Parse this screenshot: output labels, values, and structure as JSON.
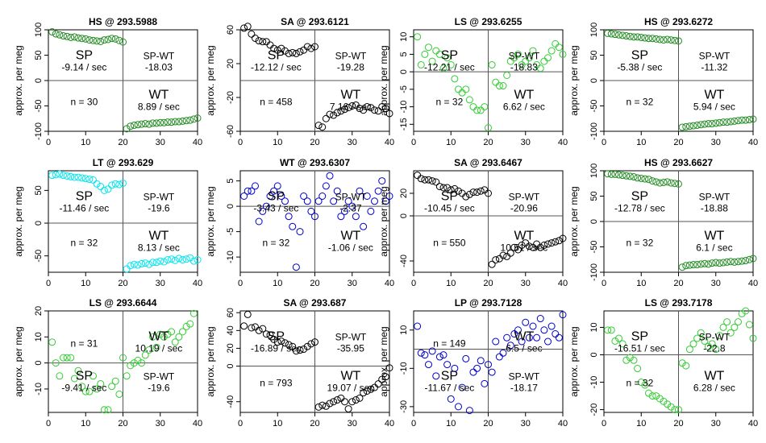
{
  "figure": {
    "ylabel": "approx. per meg",
    "xlim": [
      0,
      40
    ],
    "x_ticks": [
      0,
      10,
      20,
      30,
      40
    ]
  },
  "chart_data": [
    {
      "type": "scatter",
      "title": "HS @ 293.5988",
      "color": "#228B22",
      "ylim": [
        -100,
        100
      ],
      "y_ticks": [
        -100,
        -50,
        0,
        50,
        100
      ],
      "sp_label": "SP",
      "sp_rate": "-9.14 / sec",
      "spwt_label": "SP-WT",
      "spwt_value": "-18.03",
      "wt_label": "WT",
      "wt_rate": "8.89 / sec",
      "n_text": "n = 30",
      "quad": {
        "sp": "tl",
        "spwt": "tr",
        "n": "bl",
        "wt": "br"
      },
      "x": [
        1,
        2,
        3,
        4,
        5,
        6,
        7,
        8,
        9,
        10,
        11,
        12,
        13,
        14,
        15,
        16,
        17,
        18,
        19,
        20,
        21,
        22,
        23,
        24,
        25,
        26,
        27,
        28,
        29,
        30,
        31,
        32,
        33,
        34,
        35,
        36,
        37,
        38,
        39,
        40
      ],
      "y": [
        96,
        92,
        90,
        88,
        87,
        85,
        86,
        84,
        83,
        82,
        80,
        79,
        78,
        77,
        80,
        81,
        83,
        82,
        79,
        76,
        -95,
        -90,
        -88,
        -87,
        -86,
        -85,
        -86,
        -84,
        -84,
        -83,
        -83,
        -82,
        -82,
        -81,
        -81,
        -80,
        -79,
        -78,
        -76,
        -74
      ]
    },
    {
      "type": "scatter",
      "title": "SA @ 293.6121",
      "color": "#000000",
      "ylim": [
        -60,
        60
      ],
      "y_ticks": [
        -60,
        -20,
        20,
        60
      ],
      "sp_label": "SP",
      "sp_rate": "-12.12 / sec",
      "spwt_label": "SP-WT",
      "spwt_value": "-19.28",
      "wt_label": "WT",
      "wt_rate": "7.16 / sec",
      "n_text": "n = 458",
      "quad": {
        "sp": "tl",
        "spwt": "tr",
        "n": "bl",
        "wt": "br"
      },
      "x": [
        1,
        2,
        3,
        4,
        5,
        6,
        7,
        8,
        9,
        10,
        11,
        12,
        13,
        14,
        15,
        16,
        17,
        18,
        19,
        20,
        21,
        22,
        23,
        24,
        25,
        26,
        27,
        28,
        29,
        30,
        31,
        32,
        33,
        34,
        35,
        36,
        37,
        38,
        39,
        40
      ],
      "y": [
        62,
        64,
        55,
        50,
        47,
        46,
        46,
        42,
        38,
        36,
        38,
        35,
        32,
        33,
        32,
        34,
        36,
        40,
        38,
        40,
        -53,
        -55,
        -45,
        -40,
        -41,
        -38,
        -36,
        -34,
        -32,
        -30,
        -29,
        -33,
        -35,
        -31,
        -32,
        -35,
        -36,
        -31,
        -33,
        -39
      ]
    },
    {
      "type": "scatter",
      "title": "LS @ 293.6255",
      "color": "#33CC33",
      "ylim": [
        -17,
        12
      ],
      "y_ticks": [
        -15,
        -10,
        -5,
        0,
        5,
        10
      ],
      "sp_label": "SP",
      "sp_rate": "-12.21 / sec",
      "spwt_label": "SP-WT",
      "spwt_value": "-18.83",
      "wt_label": "WT",
      "wt_rate": "6.62 / sec",
      "n_text": "n = 32",
      "quad": {
        "sp": "tl",
        "spwt": "tr",
        "n": "bl",
        "wt": "br"
      },
      "x": [
        1,
        2,
        3,
        4,
        5,
        6,
        7,
        8,
        9,
        10,
        11,
        12,
        13,
        14,
        15,
        16,
        17,
        18,
        19,
        20,
        21,
        22,
        23,
        24,
        25,
        26,
        27,
        28,
        29,
        30,
        31,
        32,
        33,
        34,
        35,
        36,
        37,
        38,
        39,
        40
      ],
      "y": [
        10,
        2,
        5,
        7,
        3,
        6,
        5,
        1,
        4,
        2,
        -2,
        -5,
        -6,
        -5,
        -8,
        -10,
        -11,
        -11,
        -10,
        -16,
        2,
        -3,
        -4,
        -4,
        -1,
        3,
        4,
        5,
        2,
        3,
        4,
        6,
        2,
        1,
        3,
        4,
        6,
        8,
        7,
        5
      ]
    },
    {
      "type": "scatter",
      "title": "HS @ 293.6272",
      "color": "#228B22",
      "ylim": [
        -100,
        100
      ],
      "y_ticks": [
        -100,
        -50,
        0,
        50,
        100
      ],
      "sp_label": "SP",
      "sp_rate": "-5.38 / sec",
      "spwt_label": "SP-WT",
      "spwt_value": "-11.32",
      "wt_label": "WT",
      "wt_rate": "5.94 / sec",
      "n_text": "n = 32",
      "quad": {
        "sp": "tl",
        "spwt": "tr",
        "n": "bl",
        "wt": "br"
      },
      "x": [
        1,
        2,
        3,
        4,
        5,
        6,
        7,
        8,
        9,
        10,
        11,
        12,
        13,
        14,
        15,
        16,
        17,
        18,
        19,
        20,
        21,
        22,
        23,
        24,
        25,
        26,
        27,
        28,
        29,
        30,
        31,
        32,
        33,
        34,
        35,
        36,
        37,
        38,
        39,
        40
      ],
      "y": [
        93,
        92,
        91,
        90,
        89,
        88,
        87,
        86,
        86,
        85,
        84,
        83,
        83,
        82,
        81,
        80,
        81,
        80,
        79,
        78,
        -92,
        -91,
        -90,
        -89,
        -88,
        -87,
        -86,
        -85,
        -85,
        -84,
        -83,
        -82,
        -82,
        -81,
        -80,
        -79,
        -78,
        -78,
        -77,
        -76
      ]
    },
    {
      "type": "scatter",
      "title": "LT @ 293.629",
      "color": "#00E5EE",
      "ylim": [
        -75,
        80
      ],
      "y_ticks": [
        -50,
        0,
        50
      ],
      "sp_label": "SP",
      "sp_rate": "-11.46 / sec",
      "spwt_label": "SP-WT",
      "spwt_value": "-19.6",
      "wt_label": "WT",
      "wt_rate": "8.13 / sec",
      "n_text": "n = 32",
      "quad": {
        "sp": "tl",
        "spwt": "tr",
        "n": "bl",
        "wt": "br"
      },
      "x": [
        1,
        2,
        3,
        4,
        5,
        6,
        7,
        8,
        9,
        10,
        11,
        12,
        13,
        14,
        15,
        16,
        17,
        18,
        19,
        20,
        21,
        22,
        23,
        24,
        25,
        26,
        27,
        28,
        29,
        30,
        31,
        32,
        33,
        34,
        35,
        36,
        37,
        38,
        39,
        40
      ],
      "y": [
        73,
        74,
        75,
        73,
        72,
        71,
        70,
        70,
        69,
        68,
        67,
        66,
        60,
        56,
        50,
        52,
        58,
        60,
        59,
        61,
        -70,
        -65,
        -63,
        -64,
        -62,
        -61,
        -63,
        -60,
        -60,
        -58,
        -59,
        -56,
        -55,
        -57,
        -54,
        -56,
        -55,
        -53,
        -58,
        -56
      ]
    },
    {
      "type": "scatter",
      "title": "WT @ 293.6307",
      "color": "#0000CD",
      "ylim": [
        -13,
        7
      ],
      "y_ticks": [
        -10,
        -5,
        0,
        5
      ],
      "sp_label": "SP",
      "sp_rate": "-3.43 / sec",
      "spwt_label": "SP-WT",
      "spwt_value": "-2.37",
      "wt_label": "WT",
      "wt_rate": "-1.06 / sec",
      "n_text": "n = 32",
      "quad": {
        "sp": "tl",
        "spwt": "tr",
        "n": "bl",
        "wt": "br"
      },
      "x": [
        1,
        2,
        3,
        4,
        5,
        6,
        7,
        8,
        9,
        10,
        11,
        12,
        13,
        14,
        15,
        16,
        17,
        18,
        19,
        20,
        21,
        22,
        23,
        24,
        25,
        26,
        27,
        28,
        29,
        30,
        31,
        32,
        33,
        34,
        35,
        36,
        37,
        38,
        39,
        40
      ],
      "y": [
        2,
        3,
        3,
        4,
        -3,
        -1,
        0,
        2,
        3,
        4,
        2,
        1,
        -2,
        -4,
        -12,
        -5,
        2,
        1,
        -1,
        -2,
        1,
        2,
        4,
        6,
        1,
        3,
        -2,
        -1,
        1,
        0,
        -2,
        3,
        -4,
        2,
        -1,
        1,
        3,
        5,
        1,
        2
      ]
    },
    {
      "type": "scatter",
      "title": "SA @ 293.6467",
      "color": "#000000",
      "ylim": [
        -50,
        40
      ],
      "y_ticks": [
        -40,
        0,
        20
      ],
      "sp_label": "SP",
      "sp_rate": "-10.45 / sec",
      "spwt_label": "SP-WT",
      "spwt_value": "-20.96",
      "wt_label": "WT",
      "wt_rate": "10.51 / sec",
      "n_text": "n = 550",
      "quad": {
        "sp": "tl",
        "spwt": "tr",
        "n": "bl",
        "wt": "br"
      },
      "x": [
        1,
        2,
        3,
        4,
        5,
        6,
        7,
        8,
        9,
        10,
        11,
        12,
        13,
        14,
        15,
        16,
        17,
        18,
        19,
        20,
        21,
        22,
        23,
        24,
        25,
        26,
        27,
        28,
        29,
        30,
        31,
        32,
        33,
        34,
        35,
        36,
        37,
        38,
        39,
        40
      ],
      "y": [
        36,
        33,
        32,
        32,
        31,
        30,
        26,
        25,
        25,
        23,
        24,
        22,
        20,
        17,
        19,
        21,
        21,
        22,
        23,
        20,
        -43,
        -39,
        -38,
        -35,
        -36,
        -33,
        -28,
        -30,
        -26,
        -24,
        -27,
        -28,
        -25,
        -28,
        -26,
        -25,
        -24,
        -23,
        -22,
        -20
      ]
    },
    {
      "type": "scatter",
      "title": "HS @ 293.6627",
      "color": "#228B22",
      "ylim": [
        -100,
        100
      ],
      "y_ticks": [
        -100,
        -50,
        0,
        50,
        100
      ],
      "sp_label": "SP",
      "sp_rate": "-12.78 / sec",
      "spwt_label": "SP-WT",
      "spwt_value": "-18.88",
      "wt_label": "WT",
      "wt_rate": "6.1 / sec",
      "n_text": "n = 32",
      "quad": {
        "sp": "tl",
        "spwt": "tr",
        "n": "bl",
        "wt": "br"
      },
      "x": [
        1,
        2,
        3,
        4,
        5,
        6,
        7,
        8,
        9,
        10,
        11,
        12,
        13,
        14,
        15,
        16,
        17,
        18,
        19,
        20,
        21,
        22,
        23,
        24,
        25,
        26,
        27,
        28,
        29,
        30,
        31,
        32,
        33,
        34,
        35,
        36,
        37,
        38,
        39,
        40
      ],
      "y": [
        94,
        93,
        93,
        92,
        91,
        90,
        89,
        88,
        86,
        85,
        84,
        83,
        80,
        78,
        76,
        77,
        78,
        76,
        75,
        74,
        -90,
        -87,
        -86,
        -85,
        -85,
        -84,
        -83,
        -84,
        -82,
        -81,
        -82,
        -81,
        -80,
        -79,
        -80,
        -79,
        -78,
        -77,
        -75,
        -73
      ]
    },
    {
      "type": "scatter",
      "title": "LS @ 293.6644",
      "color": "#33CC33",
      "ylim": [
        -19,
        20
      ],
      "y_ticks": [
        -10,
        0,
        10,
        20
      ],
      "sp_label": "SP",
      "sp_rate": "-9.41 / sec",
      "spwt_label": "SP-WT",
      "spwt_value": "-19.6",
      "wt_label": "WT",
      "wt_rate": "10.19 / sec",
      "n_text": "n = 31",
      "quad": {
        "sp": "bl",
        "spwt": "br",
        "n": "tl",
        "wt": "tr"
      },
      "x": [
        1,
        2,
        3,
        4,
        5,
        6,
        7,
        8,
        9,
        10,
        11,
        12,
        13,
        14,
        15,
        16,
        17,
        18,
        19,
        20,
        21,
        22,
        23,
        24,
        25,
        26,
        27,
        28,
        29,
        30,
        31,
        32,
        33,
        34,
        35,
        36,
        37,
        38,
        39
      ],
      "y": [
        8,
        0,
        -5,
        2,
        2,
        2,
        -6,
        -3,
        -9,
        -11,
        -11,
        -5,
        -10,
        -8,
        -18,
        -18,
        -9,
        -7,
        -12,
        2,
        -5,
        -1,
        0,
        1,
        0,
        3,
        5,
        10,
        6,
        11,
        10,
        11,
        12,
        8,
        10,
        12,
        14,
        15,
        19
      ]
    },
    {
      "type": "scatter",
      "title": "SA @ 293.687",
      "color": "#000000",
      "ylim": [
        -52,
        62
      ],
      "y_ticks": [
        -40,
        0,
        20,
        40,
        60
      ],
      "sp_label": "SP",
      "sp_rate": "-16.89 / sec",
      "spwt_label": "SP-WT",
      "spwt_value": "-35.95",
      "wt_label": "WT",
      "wt_rate": "19.07 / sec",
      "n_text": "n = 793",
      "quad": {
        "sp": "tl",
        "spwt": "tr",
        "n": "bl",
        "wt": "br"
      },
      "x": [
        1,
        2,
        3,
        4,
        5,
        6,
        7,
        8,
        9,
        10,
        11,
        12,
        13,
        14,
        15,
        16,
        17,
        18,
        19,
        20,
        21,
        22,
        23,
        24,
        25,
        26,
        27,
        28,
        29,
        30,
        31,
        32,
        33,
        34,
        35,
        36,
        37,
        38,
        39,
        40
      ],
      "y": [
        45,
        58,
        43,
        44,
        40,
        42,
        36,
        35,
        30,
        27,
        28,
        26,
        24,
        22,
        17,
        18,
        19,
        22,
        25,
        27,
        -46,
        -44,
        -45,
        -42,
        -40,
        -38,
        -36,
        -40,
        -48,
        -40,
        -38,
        -36,
        -30,
        -28,
        -26,
        -24,
        -20,
        -15,
        -12,
        -2
      ]
    },
    {
      "type": "scatter",
      "title": "LP @ 293.7128",
      "color": "#0000CD",
      "ylim": [
        -33,
        20
      ],
      "y_ticks": [
        -30,
        -10,
        10
      ],
      "sp_label": "SP",
      "sp_rate": "-11.67 / sec",
      "spwt_label": "SP-WT",
      "spwt_value": "-18.17",
      "wt_label": "WT",
      "wt_rate": "6.5 / sec",
      "n_text": "n = 149",
      "quad": {
        "sp": "bl",
        "spwt": "br",
        "n": "tl",
        "wt": "tr"
      },
      "x": [
        1,
        2,
        3,
        4,
        5,
        6,
        7,
        8,
        9,
        10,
        11,
        12,
        13,
        14,
        15,
        16,
        17,
        18,
        19,
        20,
        21,
        22,
        23,
        24,
        25,
        26,
        27,
        28,
        29,
        30,
        31,
        32,
        33,
        34,
        35,
        36,
        37,
        38,
        39,
        40
      ],
      "y": [
        12,
        -2,
        -3,
        -8,
        -1,
        -14,
        -4,
        -3,
        -8,
        -26,
        -10,
        -30,
        -20,
        -5,
        -32,
        -12,
        -10,
        -6,
        -18,
        -8,
        -12,
        4,
        -4,
        -2,
        6,
        2,
        8,
        10,
        4,
        14,
        6,
        12,
        6,
        16,
        10,
        4,
        12,
        8,
        6,
        18
      ]
    },
    {
      "type": "scatter",
      "title": "LS @ 293.7178",
      "color": "#33CC33",
      "ylim": [
        -21,
        16
      ],
      "y_ticks": [
        -20,
        -10,
        0,
        10
      ],
      "sp_label": "SP",
      "sp_rate": "-16.51 / sec",
      "spwt_label": "SP-WT",
      "spwt_value": "-22.8",
      "wt_label": "WT",
      "wt_rate": "6.28 / sec",
      "n_text": "n = 32",
      "quad": {
        "sp": "tl",
        "spwt": "tr",
        "n": "bl",
        "wt": "br"
      },
      "x": [
        1,
        2,
        3,
        4,
        5,
        6,
        7,
        8,
        9,
        10,
        11,
        12,
        13,
        14,
        15,
        16,
        17,
        18,
        19,
        20,
        21,
        22,
        23,
        24,
        25,
        26,
        27,
        28,
        29,
        30,
        31,
        32,
        33,
        34,
        35,
        36,
        37,
        38,
        39,
        40
      ],
      "y": [
        9,
        9,
        5,
        6,
        4,
        -2,
        -1,
        -2,
        -5,
        -10,
        -11,
        -14,
        -15,
        -15,
        -16,
        -17,
        -18,
        -19,
        -20,
        -20,
        -3,
        -4,
        2,
        4,
        6,
        8,
        5,
        3,
        4,
        2,
        7,
        10,
        12,
        8,
        10,
        12,
        15,
        16,
        11,
        6
      ]
    }
  ]
}
